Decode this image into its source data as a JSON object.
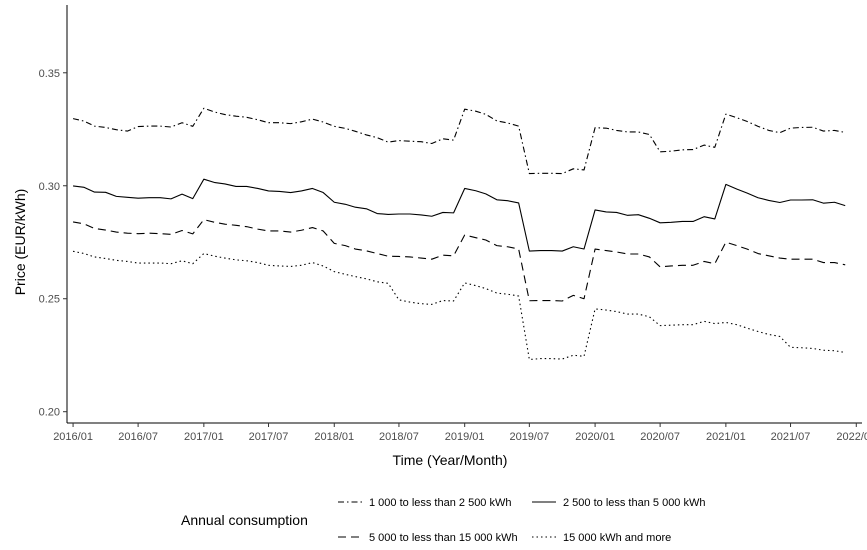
{
  "chart_data": {
    "type": "line",
    "xlabel": "Time (Year/Month)",
    "ylabel": "Price (EUR/kWh)",
    "ylim": [
      0.195,
      0.38
    ],
    "xlim": [
      "2015-12-15",
      "2022-01-17"
    ],
    "y_ticks": [
      0.2,
      0.25,
      0.3,
      0.35
    ],
    "y_tick_labels": [
      "0.20",
      "0.25",
      "0.30",
      "0.35"
    ],
    "x_ticks": [
      "2016-01",
      "2016-07",
      "2017-01",
      "2017-07",
      "2018-01",
      "2018-07",
      "2019-01",
      "2019-07",
      "2020-01",
      "2020-07",
      "2021-01",
      "2021-07",
      "2022-01"
    ],
    "x_tick_labels": [
      "2016/01",
      "2016/07",
      "2017/01",
      "2017/07",
      "2018/01",
      "2018/07",
      "2019/01",
      "2019/07",
      "2020/01",
      "2020/07",
      "2021/01",
      "2021/07",
      "2022/01"
    ],
    "grid": false,
    "legend": {
      "title": "Annual consumption",
      "position": "bottom"
    },
    "x": [
      "2016-01",
      "2016-02",
      "2016-03",
      "2016-04",
      "2016-05",
      "2016-06",
      "2016-07",
      "2016-08",
      "2016-09",
      "2016-10",
      "2016-11",
      "2016-12",
      "2017-01",
      "2017-02",
      "2017-03",
      "2017-04",
      "2017-05",
      "2017-06",
      "2017-07",
      "2017-08",
      "2017-09",
      "2017-10",
      "2017-11",
      "2017-12",
      "2018-01",
      "2018-02",
      "2018-03",
      "2018-04",
      "2018-05",
      "2018-06",
      "2018-07",
      "2018-08",
      "2018-09",
      "2018-10",
      "2018-11",
      "2018-12",
      "2019-01",
      "2019-02",
      "2019-03",
      "2019-04",
      "2019-05",
      "2019-06",
      "2019-07",
      "2019-08",
      "2019-09",
      "2019-10",
      "2019-11",
      "2019-12",
      "2020-01",
      "2020-02",
      "2020-03",
      "2020-04",
      "2020-05",
      "2020-06",
      "2020-07",
      "2020-08",
      "2020-09",
      "2020-10",
      "2020-11",
      "2020-12",
      "2021-01",
      "2021-02",
      "2021-03",
      "2021-04",
      "2021-05",
      "2021-06",
      "2021-07",
      "2021-08",
      "2021-09",
      "2021-10",
      "2021-11",
      "2021-12"
    ],
    "series": [
      {
        "name": "1 000 to less than 2 500 kWh",
        "dash": "dotdash",
        "values": [
          0.3297,
          0.3286,
          0.3264,
          0.3258,
          0.3248,
          0.3242,
          0.3262,
          0.3264,
          0.3264,
          0.326,
          0.3279,
          0.3263,
          0.3343,
          0.3326,
          0.3315,
          0.3308,
          0.3303,
          0.3292,
          0.3279,
          0.3279,
          0.3275,
          0.3283,
          0.3295,
          0.3282,
          0.3263,
          0.3254,
          0.3241,
          0.3225,
          0.3213,
          0.3193,
          0.32,
          0.3197,
          0.3195,
          0.3187,
          0.3208,
          0.3202,
          0.3339,
          0.333,
          0.3316,
          0.3287,
          0.3278,
          0.3264,
          0.3054,
          0.3055,
          0.3055,
          0.3054,
          0.3075,
          0.307,
          0.3257,
          0.3255,
          0.3245,
          0.3238,
          0.3238,
          0.3227,
          0.315,
          0.3153,
          0.3159,
          0.316,
          0.318,
          0.317,
          0.3317,
          0.3301,
          0.3285,
          0.3263,
          0.3245,
          0.3235,
          0.3255,
          0.3258,
          0.3259,
          0.3242,
          0.3245,
          0.3236
        ]
      },
      {
        "name": "2 500 to less than 5 000 kWh",
        "dash": "solid",
        "values": [
          0.2999,
          0.2993,
          0.2972,
          0.2971,
          0.2953,
          0.2949,
          0.2945,
          0.2947,
          0.2947,
          0.2942,
          0.2963,
          0.2943,
          0.3029,
          0.3014,
          0.3008,
          0.2997,
          0.2997,
          0.2988,
          0.2977,
          0.2975,
          0.297,
          0.2977,
          0.2988,
          0.297,
          0.2927,
          0.2918,
          0.2905,
          0.2898,
          0.2877,
          0.2873,
          0.2875,
          0.2875,
          0.2871,
          0.2865,
          0.2882,
          0.288,
          0.2988,
          0.2978,
          0.2964,
          0.2938,
          0.2934,
          0.2924,
          0.2711,
          0.2713,
          0.2713,
          0.2711,
          0.273,
          0.272,
          0.2893,
          0.2884,
          0.2882,
          0.2869,
          0.2872,
          0.2856,
          0.2836,
          0.2838,
          0.2842,
          0.2842,
          0.2863,
          0.2853,
          0.3006,
          0.2985,
          0.2968,
          0.2947,
          0.2935,
          0.2926,
          0.2937,
          0.2937,
          0.2938,
          0.2923,
          0.2927,
          0.2912
        ]
      },
      {
        "name": "5 000 to less than 15 000 kWh",
        "dash": "dashed",
        "values": [
          0.284,
          0.2831,
          0.2811,
          0.2804,
          0.2795,
          0.279,
          0.2788,
          0.279,
          0.2788,
          0.2785,
          0.2802,
          0.2787,
          0.285,
          0.2838,
          0.283,
          0.2825,
          0.2819,
          0.2808,
          0.28,
          0.28,
          0.2795,
          0.2803,
          0.2815,
          0.28,
          0.2745,
          0.2735,
          0.272,
          0.2712,
          0.27,
          0.2688,
          0.2687,
          0.2685,
          0.268,
          0.2675,
          0.2693,
          0.269,
          0.2782,
          0.277,
          0.276,
          0.2735,
          0.273,
          0.272,
          0.2491,
          0.2492,
          0.2492,
          0.249,
          0.2515,
          0.25,
          0.272,
          0.2713,
          0.2707,
          0.2698,
          0.2698,
          0.2685,
          0.2641,
          0.2645,
          0.2648,
          0.2648,
          0.2665,
          0.2655,
          0.275,
          0.2735,
          0.272,
          0.27,
          0.269,
          0.268,
          0.2675,
          0.2675,
          0.2675,
          0.266,
          0.266,
          0.265
        ]
      },
      {
        "name": "15 000 kWh and more",
        "dash": "dotted",
        "values": [
          0.271,
          0.27,
          0.2685,
          0.2678,
          0.267,
          0.2665,
          0.2658,
          0.2658,
          0.2658,
          0.2655,
          0.2668,
          0.2655,
          0.27,
          0.2688,
          0.268,
          0.2672,
          0.2668,
          0.266,
          0.2648,
          0.2645,
          0.2643,
          0.2648,
          0.266,
          0.2645,
          0.262,
          0.2608,
          0.2598,
          0.2588,
          0.2575,
          0.2568,
          0.2495,
          0.2485,
          0.2478,
          0.2475,
          0.2492,
          0.249,
          0.257,
          0.2558,
          0.2545,
          0.2525,
          0.252,
          0.2512,
          0.2231,
          0.2235,
          0.2235,
          0.2233,
          0.225,
          0.2245,
          0.2455,
          0.245,
          0.2443,
          0.2432,
          0.2432,
          0.242,
          0.2381,
          0.2383,
          0.2385,
          0.2385,
          0.24,
          0.239,
          0.2395,
          0.2385,
          0.237,
          0.2355,
          0.2342,
          0.2333,
          0.2285,
          0.2283,
          0.228,
          0.2272,
          0.227,
          0.2262
        ]
      }
    ]
  }
}
